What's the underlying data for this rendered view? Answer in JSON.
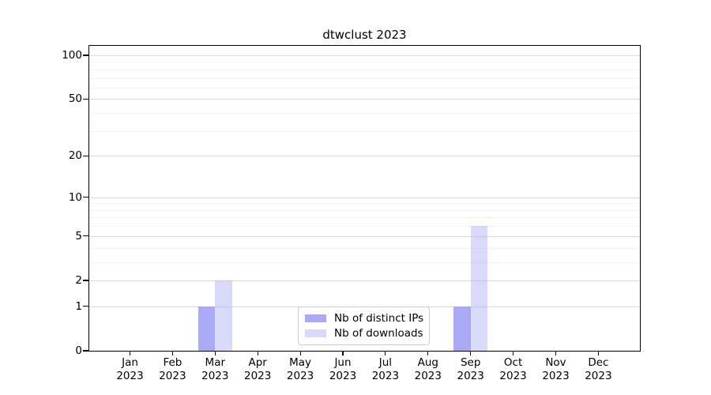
{
  "chart_data": {
    "type": "bar",
    "title": "dtwclust 2023",
    "categories": [
      "Jan 2023",
      "Feb 2023",
      "Mar 2023",
      "Apr 2023",
      "May 2023",
      "Jun 2023",
      "Jul 2023",
      "Aug 2023",
      "Sep 2023",
      "Oct 2023",
      "Nov 2023",
      "Dec 2023"
    ],
    "series": [
      {
        "name": "Nb of distinct IPs",
        "color": "#a9a9f6",
        "fill": "rgba(148,148,244,0.8)",
        "values": [
          0,
          0,
          1,
          0,
          0,
          0,
          0,
          0,
          1,
          0,
          0,
          0
        ]
      },
      {
        "name": "Nb of downloads",
        "color": "#d9d9f9",
        "fill": "rgba(179,179,243,0.5)",
        "values": [
          0,
          0,
          2,
          0,
          0,
          0,
          0,
          0,
          6,
          0,
          0,
          0
        ]
      }
    ],
    "xlabel": "",
    "ylabel": "",
    "y_axis": {
      "scale": "log1p",
      "ticks": [
        0,
        1,
        2,
        5,
        10,
        20,
        50,
        100
      ],
      "minor_gridlines": [
        3,
        4,
        6,
        7,
        8,
        9,
        30,
        40,
        60,
        70,
        80,
        90
      ],
      "range": [
        0,
        116
      ]
    },
    "grid": "on",
    "legend_position": "lower center",
    "colors": {
      "background": "#ffffff",
      "axis": "#000000",
      "major_grid": "#d9d9d9",
      "minor_grid": "#f1f1f1"
    }
  }
}
